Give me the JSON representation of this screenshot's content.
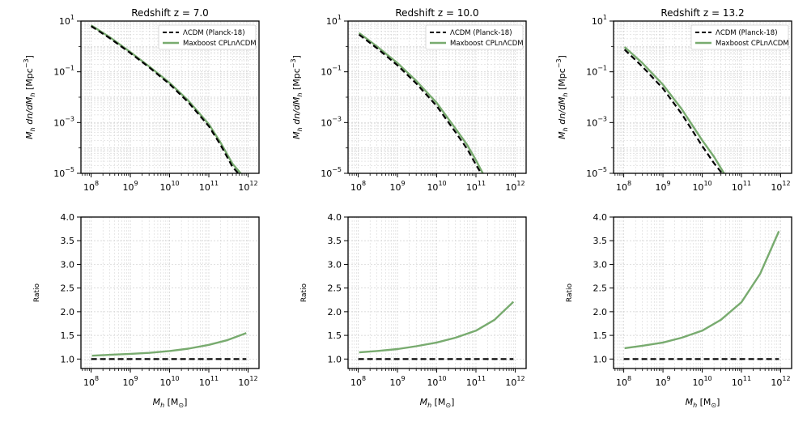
{
  "figure": {
    "legend_labels": [
      "ΛCDM (Planck-18)",
      "Maxboost CPLnΛCDM"
    ],
    "colors": {
      "lcdm": "#000000",
      "maxboost": "#78ab6f",
      "grid": "#cfcfcf"
    },
    "xlabel": "M",
    "xlabel_sub": "h",
    "xlabel_unit": " [M",
    "xlabel_sun": "⊙",
    "xlabel_close": "]",
    "ylabel_top": "[Mpc",
    "ylabel_top_exp": "−3",
    "ylabel_top_close": "]",
    "ylabel_bottom": "Ratio"
  },
  "chart_data": [
    {
      "type": "line",
      "panel": "hmf",
      "title": "Redshift z = 7.0",
      "xscale": "log",
      "yscale": "log",
      "xlim": [
        55000000.0,
        1900000000000.0
      ],
      "ylim": [
        1e-05,
        10
      ],
      "xticks": [
        "10^8",
        "10^9",
        "10^10",
        "10^11",
        "10^12"
      ],
      "yticks": [
        "10^1",
        "10^−1",
        "10^−3",
        "10^−5"
      ],
      "legend_position": "top-right",
      "series": [
        {
          "name": "ΛCDM (Planck-18)",
          "x": [
            100000000.0,
            300000000.0,
            1000000000.0,
            3000000000.0,
            10000000000.0,
            30000000000.0,
            100000000000.0,
            200000000000.0,
            400000000000.0,
            560000000000.0
          ],
          "y": [
            6.3,
            2.1,
            0.55,
            0.15,
            0.033,
            0.0063,
            0.00072,
            0.00013,
            1.8e-05,
            1e-05
          ]
        },
        {
          "name": "Maxboost CPLnΛCDM",
          "x": [
            100000000.0,
            300000000.0,
            1000000000.0,
            3000000000.0,
            10000000000.0,
            30000000000.0,
            100000000000.0,
            200000000000.0,
            400000000000.0,
            650000000000.0
          ],
          "y": [
            6.8,
            2.3,
            0.6,
            0.165,
            0.037,
            0.0073,
            0.00086,
            0.00016,
            2.4e-05,
            1e-05
          ]
        }
      ]
    },
    {
      "type": "line",
      "panel": "hmf",
      "title": "Redshift z = 10.0",
      "xscale": "log",
      "yscale": "log",
      "xlim": [
        55000000.0,
        1900000000000.0
      ],
      "ylim": [
        1e-05,
        10
      ],
      "xticks": [
        "10^8",
        "10^9",
        "10^10",
        "10^11",
        "10^12"
      ],
      "yticks": [
        "10^1",
        "10^−1",
        "10^−3",
        "10^−5"
      ],
      "legend_position": "top-right",
      "series": [
        {
          "name": "ΛCDM (Planck-18)",
          "x": [
            105000000.0,
            300000000.0,
            1000000000.0,
            3000000000.0,
            10000000000.0,
            30000000000.0,
            60000000000.0,
            100000000000.0,
            135000000000.0
          ],
          "y": [
            2.9,
            0.85,
            0.18,
            0.035,
            0.0045,
            0.00042,
            9e-05,
            2.2e-05,
            1e-05
          ]
        },
        {
          "name": "Maxboost CPLnΛCDM",
          "x": [
            105000000.0,
            300000000.0,
            1000000000.0,
            3000000000.0,
            10000000000.0,
            30000000000.0,
            60000000000.0,
            100000000000.0,
            150000000000.0
          ],
          "y": [
            3.4,
            1.0,
            0.22,
            0.044,
            0.006,
            0.00058,
            0.00013,
            3.3e-05,
            1e-05
          ]
        }
      ]
    },
    {
      "type": "line",
      "panel": "hmf",
      "title": "Redshift z = 13.2",
      "xscale": "log",
      "yscale": "log",
      "xlim": [
        55000000.0,
        1900000000000.0
      ],
      "ylim": [
        1e-05,
        10
      ],
      "xticks": [
        "10^8",
        "10^9",
        "10^10",
        "10^11",
        "10^12"
      ],
      "yticks": [
        "10^1",
        "10^−1",
        "10^−3",
        "10^−5"
      ],
      "legend_position": "top-right",
      "series": [
        {
          "name": "ΛCDM (Planck-18)",
          "x": [
            105000000.0,
            300000000.0,
            1000000000.0,
            3000000000.0,
            10000000000.0,
            20000000000.0,
            32000000000.0
          ],
          "y": [
            0.75,
            0.16,
            0.022,
            0.0022,
            0.00012,
            2.5e-05,
            1e-05
          ]
        },
        {
          "name": "Maxboost CPLnΛCDM",
          "x": [
            105000000.0,
            300000000.0,
            1000000000.0,
            3000000000.0,
            10000000000.0,
            20000000000.0,
            36000000000.0
          ],
          "y": [
            0.95,
            0.22,
            0.031,
            0.0034,
            0.0002,
            4.5e-05,
            1e-05
          ]
        }
      ]
    },
    {
      "type": "line",
      "panel": "ratio",
      "title": "",
      "xscale": "log",
      "yscale": "linear",
      "xlim": [
        55000000.0,
        1900000000000.0
      ],
      "ylim": [
        0.8,
        4.0
      ],
      "xticks": [
        "10^8",
        "10^9",
        "10^10",
        "10^11",
        "10^12"
      ],
      "yticks": [
        "1.0",
        "1.5",
        "2.0",
        "2.5",
        "3.0",
        "3.5",
        "4.0"
      ],
      "series": [
        {
          "name": "ΛCDM (Planck-18)",
          "x": [
            100000000.0,
            900000000000.0
          ],
          "y": [
            1.0,
            1.0
          ]
        },
        {
          "name": "Maxboost CPLnΛCDM",
          "x": [
            105000000.0,
            300000000.0,
            1000000000.0,
            3000000000.0,
            10000000000.0,
            30000000000.0,
            100000000000.0,
            300000000000.0,
            900000000000.0
          ],
          "y": [
            1.07,
            1.09,
            1.11,
            1.13,
            1.17,
            1.22,
            1.3,
            1.4,
            1.55
          ]
        }
      ]
    },
    {
      "type": "line",
      "panel": "ratio",
      "title": "",
      "xscale": "log",
      "yscale": "linear",
      "xlim": [
        55000000.0,
        1900000000000.0
      ],
      "ylim": [
        0.8,
        4.0
      ],
      "xticks": [
        "10^8",
        "10^9",
        "10^10",
        "10^11",
        "10^12"
      ],
      "yticks": [
        "1.0",
        "1.5",
        "2.0",
        "2.5",
        "3.0",
        "3.5",
        "4.0"
      ],
      "series": [
        {
          "name": "ΛCDM (Planck-18)",
          "x": [
            100000000.0,
            900000000000.0
          ],
          "y": [
            1.0,
            1.0
          ]
        },
        {
          "name": "Maxboost CPLnΛCDM",
          "x": [
            105000000.0,
            300000000.0,
            1000000000.0,
            3000000000.0,
            10000000000.0,
            30000000000.0,
            100000000000.0,
            300000000000.0,
            900000000000.0
          ],
          "y": [
            1.14,
            1.17,
            1.21,
            1.27,
            1.35,
            1.45,
            1.6,
            1.83,
            2.21
          ]
        }
      ]
    },
    {
      "type": "line",
      "panel": "ratio",
      "title": "",
      "xscale": "log",
      "yscale": "linear",
      "xlim": [
        55000000.0,
        1900000000000.0
      ],
      "ylim": [
        0.8,
        4.0
      ],
      "xticks": [
        "10^8",
        "10^9",
        "10^10",
        "10^11",
        "10^12"
      ],
      "yticks": [
        "1.0",
        "1.5",
        "2.0",
        "2.5",
        "3.0",
        "3.5",
        "4.0"
      ],
      "series": [
        {
          "name": "ΛCDM (Planck-18)",
          "x": [
            100000000.0,
            900000000000.0
          ],
          "y": [
            1.0,
            1.0
          ]
        },
        {
          "name": "Maxboost CPLnΛCDM",
          "x": [
            105000000.0,
            300000000.0,
            1000000000.0,
            3000000000.0,
            10000000000.0,
            30000000000.0,
            100000000000.0,
            300000000000.0,
            900000000000.0
          ],
          "y": [
            1.23,
            1.28,
            1.35,
            1.45,
            1.6,
            1.83,
            2.2,
            2.8,
            3.7
          ]
        }
      ]
    }
  ]
}
